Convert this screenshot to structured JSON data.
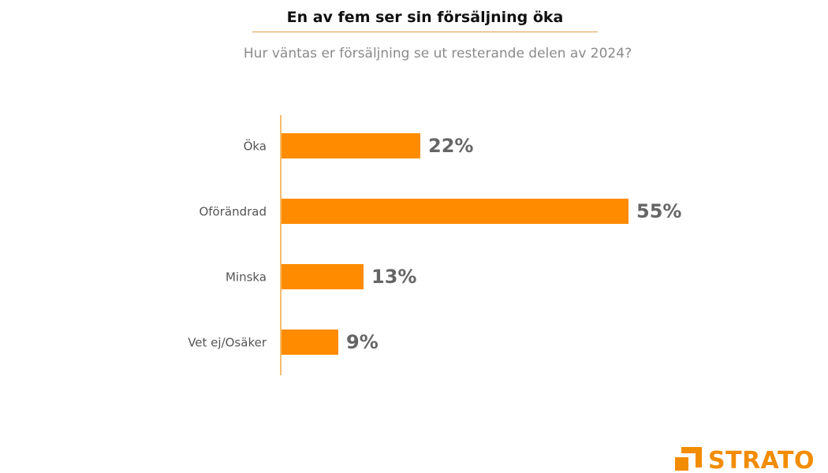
{
  "header": {
    "title": "En av fem ser sin försäljning öka",
    "subtitle": "Hur väntas er försäljning se ut resterande delen av 2024?"
  },
  "chart_data": {
    "type": "bar",
    "orientation": "horizontal",
    "categories": [
      "Öka",
      "Oförändrad",
      "Minska",
      "Vet ej/Osäker"
    ],
    "values": [
      22,
      55,
      13,
      9
    ],
    "value_labels": [
      "22%",
      "55%",
      "13%",
      "9%"
    ],
    "unit": "%",
    "title": "En av fem ser sin försäljning öka",
    "subtitle": "Hur väntas er försäljning se ut resterande delen av 2024?",
    "xlim": [
      0,
      100
    ],
    "grid": false,
    "legend": "none",
    "bar_color": "#ff8c00",
    "axis_color": "#f2a640"
  },
  "brand": {
    "name": "STRATO",
    "color": "#f28c00"
  }
}
